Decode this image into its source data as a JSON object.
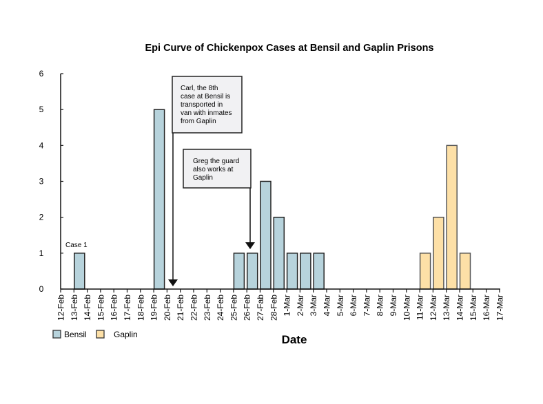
{
  "chart_data": {
    "type": "bar",
    "title": "Epi Curve of Chickenpox Cases at Bensil and Gaplin Prisons",
    "xlabel": "Date",
    "ylabel": "",
    "ylim": [
      0,
      6
    ],
    "yticks": [
      0,
      1,
      2,
      3,
      4,
      5,
      6
    ],
    "grid": false,
    "legend_position": "bottom-left",
    "categories": [
      "12-Feb",
      "13-Feb",
      "14-Feb",
      "15-Feb",
      "16-Feb",
      "17-Feb",
      "18-Feb",
      "19-Feb",
      "20-Feb",
      "21-Feb",
      "22-Feb",
      "23-Feb",
      "24-Feb",
      "25-Feb",
      "26-Feb",
      "27-Fab",
      "28-Feb",
      "1-Mar",
      "2-Mar",
      "3-Mar",
      "4-Mar",
      "5-Mar",
      "6-Mar",
      "7-Mar",
      "8-Mar",
      "9-Mar",
      "10-Mar",
      "11-Mar",
      "12-Mar",
      "13-Mar",
      "14-Mar",
      "15-Mar",
      "16-Mar",
      "17-Mar"
    ],
    "series": [
      {
        "name": "Bensil",
        "color": "#b7d3dc",
        "values": [
          0,
          1,
          0,
          0,
          0,
          0,
          0,
          5,
          0,
          0,
          0,
          0,
          0,
          1,
          1,
          3,
          2,
          1,
          1,
          1,
          0,
          0,
          0,
          0,
          0,
          0,
          0,
          0,
          0,
          0,
          0,
          0,
          0,
          0
        ]
      },
      {
        "name": "Gaplin",
        "color": "#fde0a7",
        "values": [
          0,
          0,
          0,
          0,
          0,
          0,
          0,
          0,
          0,
          0,
          0,
          0,
          0,
          0,
          0,
          0,
          0,
          0,
          0,
          0,
          0,
          0,
          0,
          0,
          0,
          0,
          0,
          1,
          2,
          4,
          1,
          0,
          0,
          0
        ]
      }
    ],
    "annotations": [
      {
        "id": "case1",
        "text": "Case 1",
        "category": "13-Feb"
      },
      {
        "id": "carl",
        "lines": [
          "Carl, the 8th",
          "case at Bensil is",
          "transported in",
          "van with inmates",
          "from Gaplin"
        ],
        "arrow_to": "20-Feb"
      },
      {
        "id": "greg",
        "lines": [
          "Greg the guard",
          "also works at",
          "Gaplin"
        ],
        "arrow_to": "26-Feb"
      }
    ]
  }
}
